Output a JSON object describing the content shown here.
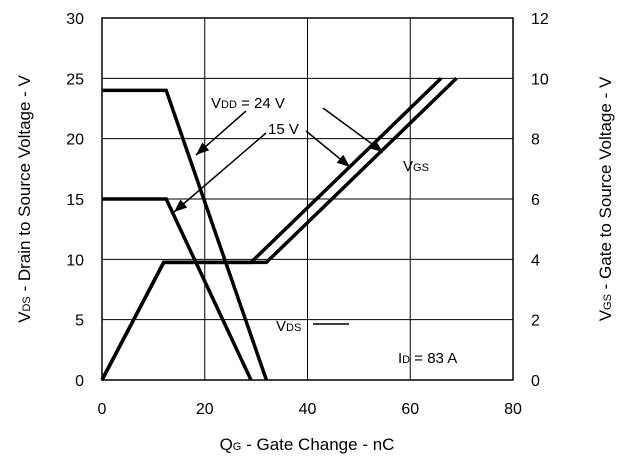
{
  "chart_data": {
    "type": "line",
    "xlabel": {
      "main": "Q",
      "sub": "G",
      "rest": " - Gate Change - nC"
    },
    "ylabel_left": {
      "main": "V",
      "sub": "DS",
      "rest": " - Drain to Source Voltage - V"
    },
    "ylabel_right": {
      "main": "V",
      "sub": "GS",
      "rest": " - Gate to Source Voltage - V"
    },
    "xlim": [
      0,
      80
    ],
    "ylim_left": [
      0,
      30
    ],
    "ylim_right": [
      0,
      12
    ],
    "x_ticks": [
      0,
      20,
      40,
      60,
      80
    ],
    "y_left_ticks": [
      0,
      5,
      10,
      15,
      20,
      25,
      30
    ],
    "y_right_ticks": [
      0,
      2,
      4,
      6,
      8,
      10,
      12
    ],
    "grid": true,
    "series": [
      {
        "axis": "left",
        "points": [
          [
            0,
            24
          ],
          [
            12.5,
            24
          ],
          [
            32,
            0
          ]
        ]
      },
      {
        "axis": "left",
        "points": [
          [
            0,
            15
          ],
          [
            12.5,
            15
          ],
          [
            29,
            0
          ]
        ]
      },
      {
        "axis": "right",
        "points": [
          [
            0,
            0
          ],
          [
            12,
            3.9
          ],
          [
            32,
            3.9
          ],
          [
            69,
            10
          ]
        ]
      },
      {
        "axis": "right",
        "points": [
          [
            0,
            0
          ],
          [
            12,
            3.9
          ],
          [
            29,
            3.9
          ],
          [
            66,
            10
          ]
        ]
      }
    ],
    "annotations": {
      "vdd": {
        "main": "V",
        "sub": "DD",
        "rest": " = 24 V"
      },
      "v15": "15 V",
      "vgs": {
        "main": "V",
        "sub": "GS"
      },
      "vds": {
        "main": "V",
        "sub": "DS"
      },
      "id": {
        "main": "I",
        "sub": "D",
        "rest": " = 83 A"
      }
    }
  }
}
